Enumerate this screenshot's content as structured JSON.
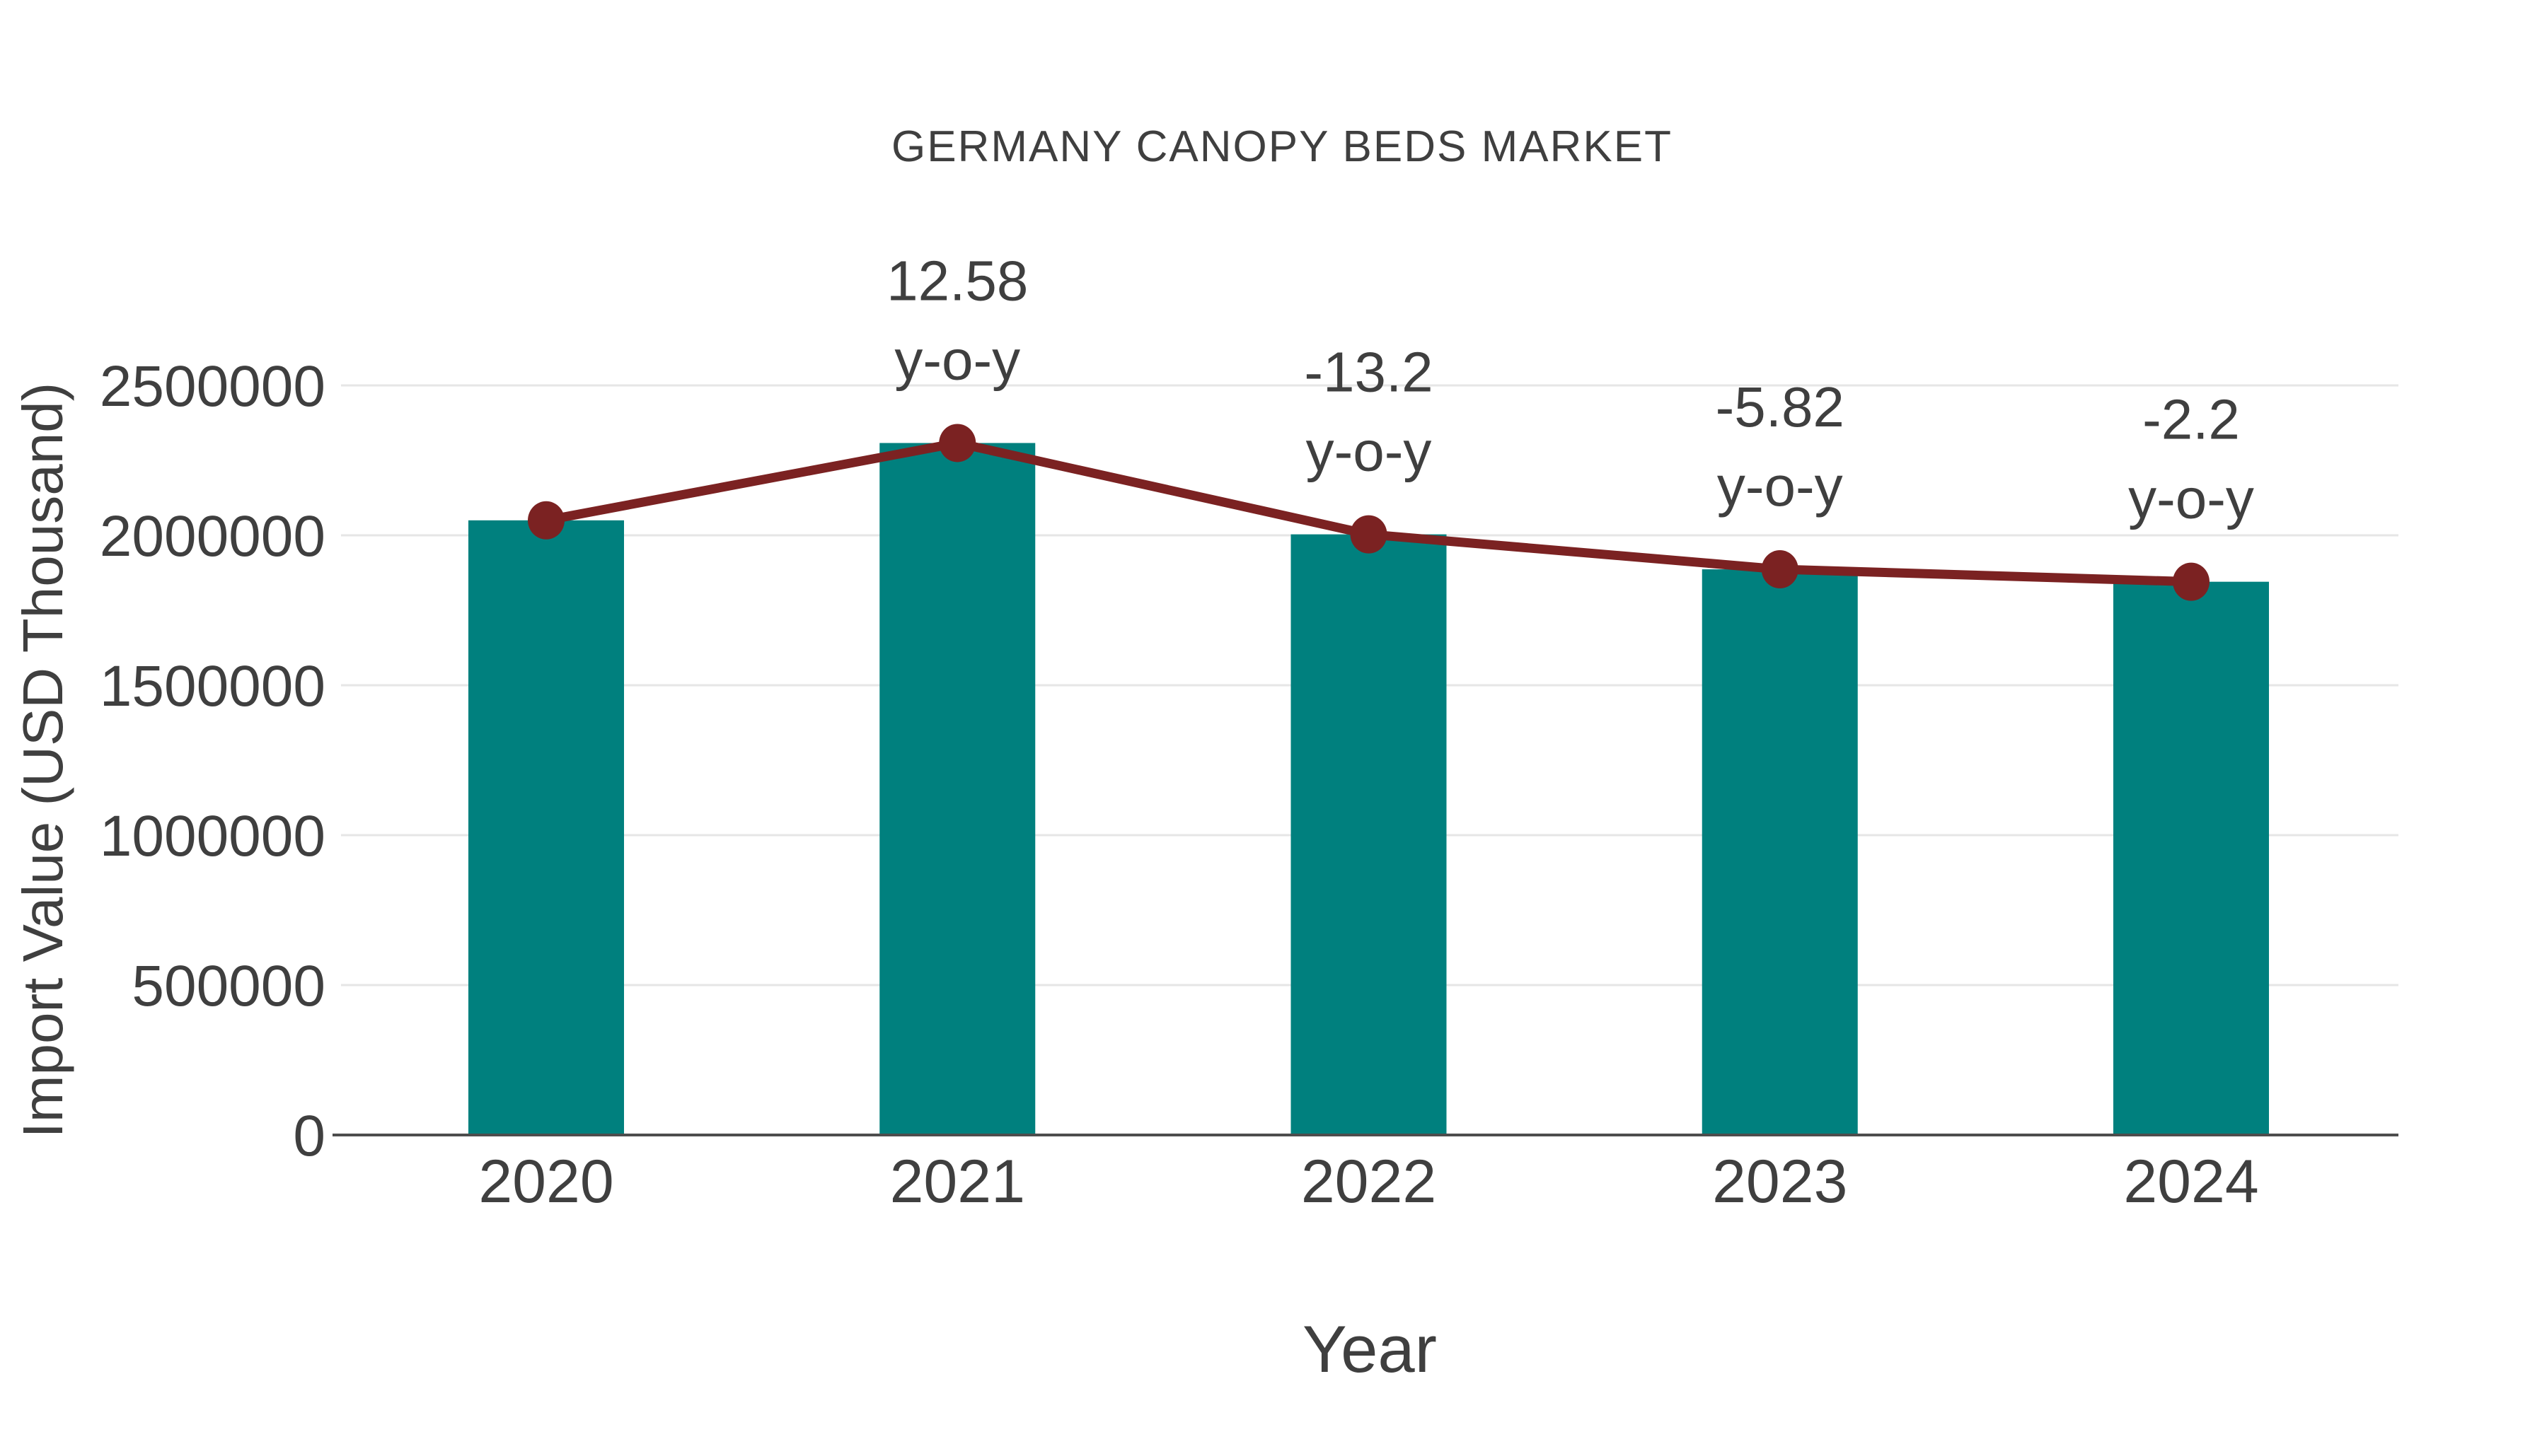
{
  "chart_data": {
    "type": "bar",
    "subtype": "bar-with-line-overlay",
    "title": "GERMANY CANOPY BEDS MARKET",
    "xlabel": "Year",
    "ylabel": "Import Value (USD Thousand)",
    "categories": [
      "2020",
      "2021",
      "2022",
      "2023",
      "2024"
    ],
    "bar_series": {
      "name": "Import Value (USD Thousand)",
      "values": [
        2050000,
        2307890,
        2003250,
        1886660,
        1845150
      ]
    },
    "line_series": {
      "name": "y-o-y trend line",
      "values": [
        2050000,
        2307890,
        2003250,
        1886660,
        1845150
      ]
    },
    "yoy_labels": [
      null,
      "12.58",
      "-13.2",
      "-5.82",
      "-2.2"
    ],
    "yoy_suffix": "y-o-y",
    "yticks": [
      0,
      500000,
      1000000,
      1500000,
      2000000,
      2500000
    ],
    "ylim": [
      0,
      2500000
    ],
    "grid": "horizontal-light-gray",
    "legend": "none",
    "colors": {
      "bar": "#00807E",
      "line": "#7B2222",
      "text": "#3F3F3F",
      "grid": "#E6E6E6",
      "axis": "#4D4D4D",
      "background": "#FFFFFF"
    }
  }
}
